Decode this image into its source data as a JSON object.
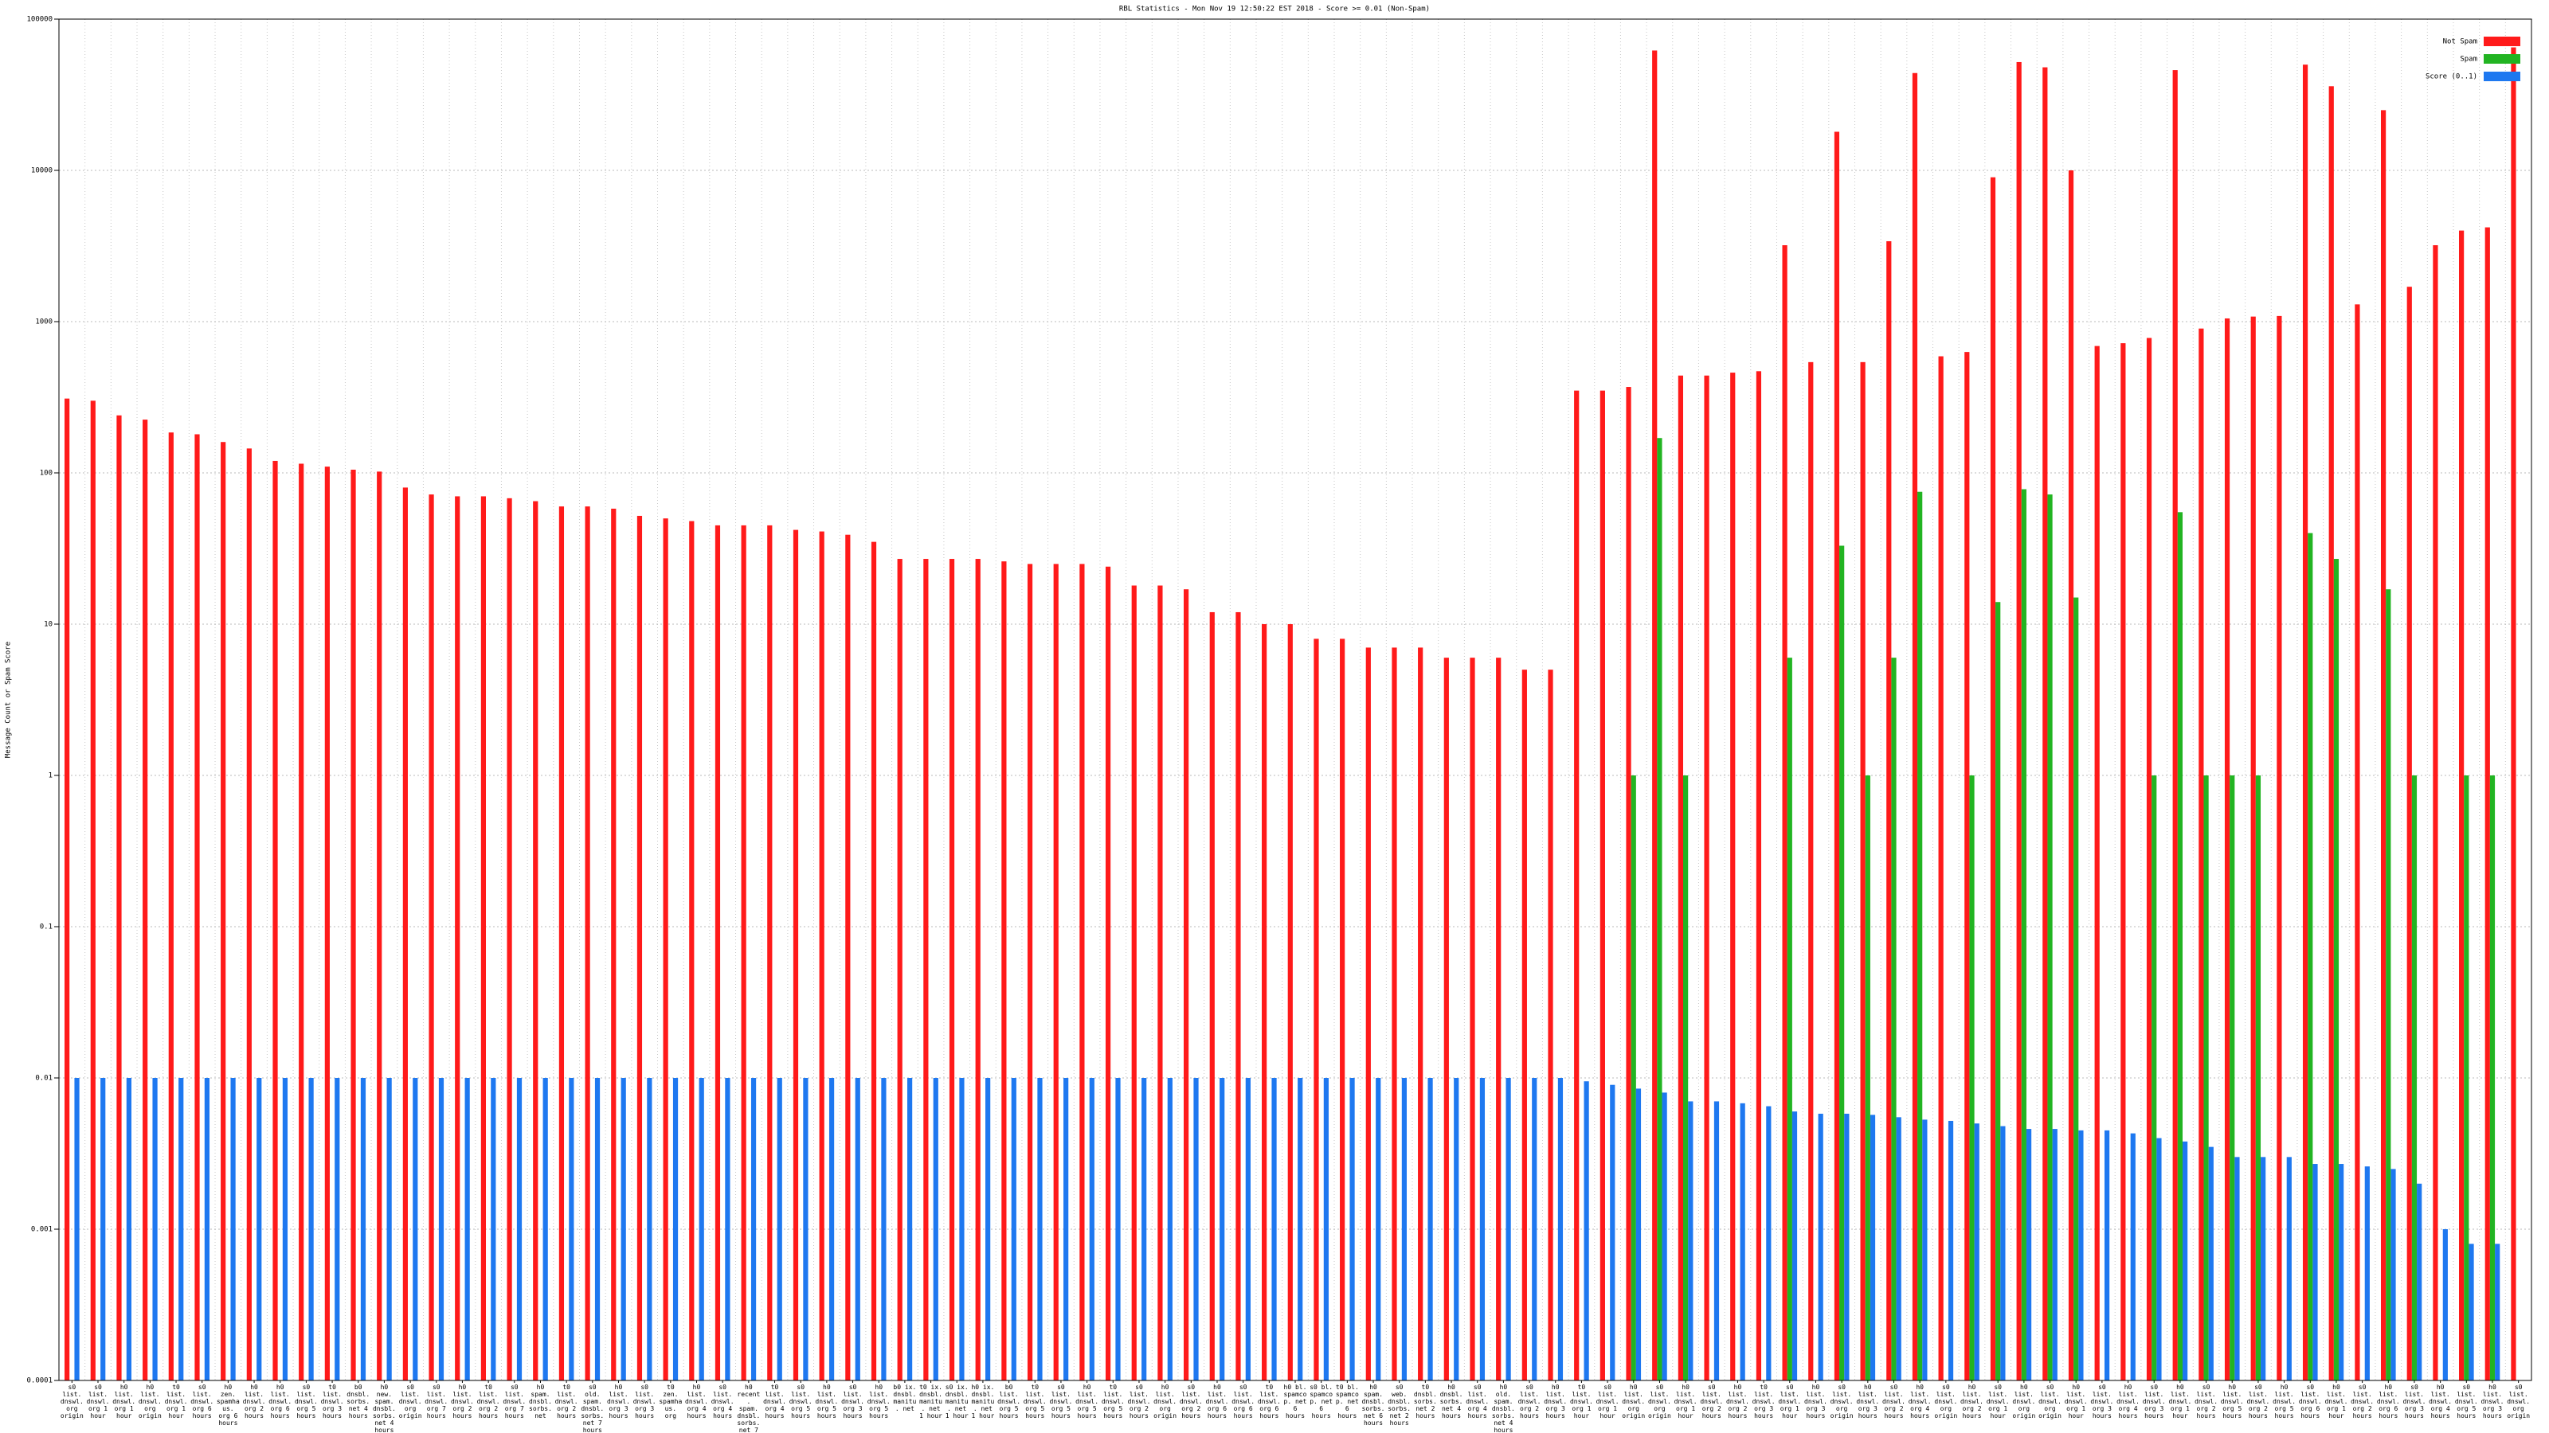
{
  "chart_data": {
    "type": "bar",
    "title": "RBL Statistics - Mon Nov 19 12:50:22 EST 2018 - Score >= 0.01 (Non-Spam)",
    "y_label": "Message Count or Spam Score",
    "log_scale": true,
    "grid": true,
    "legend": "top-right",
    "ylim": [
      0.0001,
      100000
    ],
    "yticks": [
      0.0001,
      0.001,
      0.01,
      0.1,
      1,
      10,
      100,
      1000,
      10000,
      100000
    ],
    "categories": [
      "s0 list. dnswl. org origin",
      "s0 list. dnswl. org 1 hour",
      "h0 list. dnswl. org 1 hour",
      "h0 list. dnswl. org origin",
      "t0 list. dnswl. org 1 hour",
      "s0 list. dnswl. org 6 hours",
      "h0 zen. spamhaus. org 6 hours",
      "h0 list. dnswl. org 2 hours",
      "h0 list. dnswl. org 6 hours",
      "s0 list. dnswl. org 5 hours",
      "t0 list. dnswl. org 3 hours",
      "b0 dnsbl. sorbs. net 4 hours",
      "h0 new. spam. dnsbl. sorbs. net 4 hours",
      "s0 list. dnswl. org origin",
      "s0 list. dnswl. org 7 hours",
      "h0 list. dnswl. org 2 hours",
      "t0 list. dnswl. org 2 hours",
      "s0 list. dnswl. org 7 hours",
      "h0 spam. dnsbl. sorbs. net",
      "t0 list. dnswl. org 2 hours",
      "s0 old. spam. dnsbl. sorbs. net 7 hours",
      "h0 list. dnswl. org 3 hours",
      "s0 list. dnswl. org 3 hours",
      "t0 zen. spamhaus. org",
      "h0 list. dnswl. org 4 hours",
      "s0 list. dnswl. org 4 hours",
      "h0 recent. spam. dnsbl. sorbs. net 7 hours",
      "t0 list. dnswl. org 4 hours",
      "s0 list. dnswl. org 5 hours",
      "h0 list. dnswl. org 5 hours",
      "s0 list. dnswl. org 3 hours",
      "h0 list. dnswl. org 5 hours",
      "b0 ix. dnsbl. manitu. net",
      "t0 ix. dnsbl. manitu. net 1 hour",
      "s0 ix. dnsbl. manitu. net 1 hour",
      "h0 ix. dnsbl. manitu. net 1 hour",
      "b0 list. dnswl. org 5 hours",
      "t0 list. dnswl. org 5 hours",
      "s0 list. dnswl. org 5 hours",
      "h0 list. dnswl. org 5 hours",
      "t0 list. dnswl. org 5 hours",
      "s0 list. dnswl. org 2 hours",
      "h0 list. dnswl. org origin",
      "s0 list. dnswl. org 2 hours",
      "h0 list. dnswl. org 6 hours",
      "s0 list. dnswl. org 6 hours",
      "t0 list. dnswl. org 6 hours",
      "h0 bl. spamcop. net 6 hours",
      "s0 bl. spamcop. net 6 hours",
      "t0 bl. spamcop. net 6 hours",
      "h0 spam. dnsbl. sorbs. net 6 hours",
      "s0 web. dnsbl. sorbs. net 2 hours",
      "t0 dnsbl. sorbs. net 2 hours",
      "h0 dnsbl. sorbs. net 4 hours",
      "s0 list. dnswl. org 4 hours",
      "h0 old. spam. dnsbl. sorbs. net 4 hours",
      "s0 list. dnswl. org 2 hours",
      "h0 list. dnswl. org 3 hours",
      "t0 list. dnswl. org 1 hour",
      "s0 list. dnswl. org 1 hour",
      "h0 list. dnswl. org origin",
      "s0 list. dnswl. org origin",
      "h0 list. dnswl. org 1 hour",
      "s0 list. dnswl. org 2 hours",
      "h0 list. dnswl. org 2 hours",
      "t0 list. dnswl. org 3 hours",
      "s0 list. dnswl. org 1 hour",
      "h0 list. dnswl. org 3 hours",
      "s0 list. dnswl. org origin",
      "h0 list. dnswl. org 3 hours",
      "s0 list. dnswl. org 2 hours",
      "h0 list. dnswl. org 4 hours",
      "s0 list. dnswl. org origin",
      "h0 list. dnswl. org 2 hours",
      "s0 list. dnswl. org 1 hour",
      "h0 list. dnswl. org origin",
      "s0 list. dnswl. org origin",
      "h0 list. dnswl. org 1 hour",
      "s0 list. dnswl. org 3 hours",
      "h0 list. dnswl. org 4 hours",
      "s0 list. dnswl. org 3 hours",
      "h0 list. dnswl. org 1 hour",
      "s0 list. dnswl. org 2 hours",
      "h0 list. dnswl. org 5 hours",
      "s0 list. dnswl. org 2 hours",
      "h0 list. dnswl. org 5 hours",
      "s0 list. dnswl. org 6 hours",
      "h0 list. dnswl. org 1 hour",
      "s0 list. dnswl. org 2 hours",
      "h0 list. dnswl. org 6 hours",
      "s0 list. dnswl. org 3 hours",
      "h0 list. dnswl. org 4 hours",
      "s0 list. dnswl. org 5 hours",
      "h0 list. dnswl. org 3 hours",
      "s0 list. dnswl. org origin"
    ],
    "series": [
      {
        "name": "Not Spam",
        "color": "#ff1a1a",
        "values": [
          310,
          300,
          240,
          225,
          185,
          180,
          160,
          145,
          120,
          115,
          110,
          105,
          102,
          80,
          72,
          70,
          70,
          68,
          65,
          60,
          60,
          58,
          52,
          50,
          48,
          45,
          45,
          45,
          42,
          41,
          39,
          35,
          27,
          27,
          27,
          27,
          26,
          25,
          25,
          25,
          24,
          18,
          18,
          17,
          12,
          12,
          10,
          10,
          8,
          8,
          7,
          7,
          7,
          6,
          6,
          6,
          5,
          5,
          350,
          350,
          370,
          62000,
          440,
          440,
          460,
          470,
          3200,
          540,
          18000,
          540,
          3400,
          44000,
          590,
          630,
          9000,
          52000,
          48000,
          10000,
          690,
          720,
          780,
          46000,
          900,
          1050,
          1080,
          1090,
          50000,
          36000,
          1300,
          25000,
          1700,
          3200,
          4000,
          4200,
          65000
        ]
      },
      {
        "name": "Spam",
        "color": "#22b422",
        "values": [
          null,
          null,
          null,
          null,
          null,
          null,
          null,
          null,
          null,
          null,
          null,
          null,
          null,
          null,
          null,
          null,
          null,
          null,
          null,
          null,
          null,
          null,
          null,
          null,
          null,
          null,
          null,
          null,
          null,
          null,
          null,
          null,
          null,
          null,
          null,
          null,
          null,
          null,
          null,
          null,
          null,
          null,
          null,
          null,
          null,
          null,
          null,
          null,
          null,
          null,
          null,
          null,
          null,
          null,
          null,
          null,
          null,
          null,
          null,
          null,
          1,
          170,
          1,
          null,
          null,
          null,
          6,
          null,
          33,
          1,
          6,
          75,
          null,
          1,
          14,
          78,
          72,
          15,
          null,
          null,
          1,
          55,
          1,
          1,
          1,
          null,
          40,
          27,
          null,
          17,
          1,
          null,
          1,
          1,
          null
        ]
      },
      {
        "name": "Score (0..1)",
        "color": "#1e78f0",
        "values": [
          0.01,
          0.01,
          0.01,
          0.01,
          0.01,
          0.01,
          0.01,
          0.01,
          0.01,
          0.01,
          0.01,
          0.01,
          0.01,
          0.01,
          0.01,
          0.01,
          0.01,
          0.01,
          0.01,
          0.01,
          0.01,
          0.01,
          0.01,
          0.01,
          0.01,
          0.01,
          0.01,
          0.01,
          0.01,
          0.01,
          0.01,
          0.01,
          0.01,
          0.01,
          0.01,
          0.01,
          0.01,
          0.01,
          0.01,
          0.01,
          0.01,
          0.01,
          0.01,
          0.01,
          0.01,
          0.01,
          0.01,
          0.01,
          0.01,
          0.01,
          0.01,
          0.01,
          0.01,
          0.01,
          0.01,
          0.01,
          0.01,
          0.01,
          0.0095,
          0.009,
          0.0085,
          0.008,
          0.007,
          0.007,
          0.0068,
          0.0065,
          0.006,
          0.0058,
          0.0058,
          0.0057,
          0.0055,
          0.0053,
          0.0052,
          0.005,
          0.0048,
          0.0046,
          0.0046,
          0.0045,
          0.0045,
          0.0043,
          0.004,
          0.0038,
          0.0035,
          0.003,
          0.003,
          0.003,
          0.0027,
          0.0027,
          0.0026,
          0.0025,
          0.002,
          0.001,
          0.0008,
          0.0008,
          null
        ]
      }
    ]
  }
}
